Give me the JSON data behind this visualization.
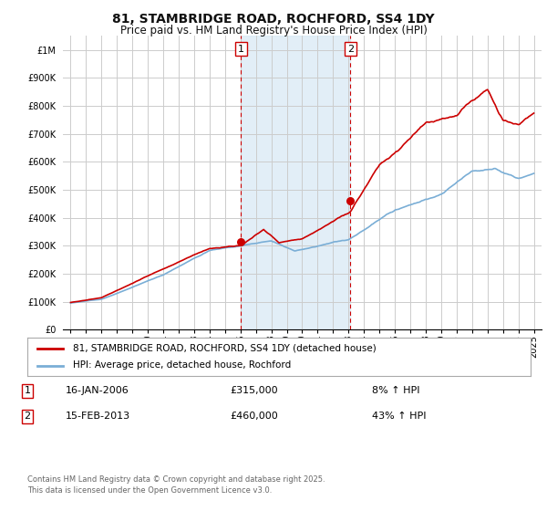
{
  "title": "81, STAMBRIDGE ROAD, ROCHFORD, SS4 1DY",
  "subtitle": "Price paid vs. HM Land Registry's House Price Index (HPI)",
  "red_label": "81, STAMBRIDGE ROAD, ROCHFORD, SS4 1DY (detached house)",
  "blue_label": "HPI: Average price, detached house, Rochford",
  "footnote": "Contains HM Land Registry data © Crown copyright and database right 2025.\nThis data is licensed under the Open Government Licence v3.0.",
  "event1_date": "16-JAN-2006",
  "event1_price": "£315,000",
  "event1_hpi": "8% ↑ HPI",
  "event1_year": 2006.04,
  "event1_value": 315000,
  "event2_date": "15-FEB-2013",
  "event2_price": "£460,000",
  "event2_hpi": "43% ↑ HPI",
  "event2_year": 2013.12,
  "event2_value": 460000,
  "ylim_max": 1050000,
  "xlim_min": 1994.5,
  "xlim_max": 2025.5,
  "yticks": [
    0,
    100000,
    200000,
    300000,
    400000,
    500000,
    600000,
    700000,
    800000,
    900000,
    1000000
  ],
  "ytick_labels": [
    "£0",
    "£100K",
    "£200K",
    "£300K",
    "£400K",
    "£500K",
    "£600K",
    "£700K",
    "£800K",
    "£900K",
    "£1M"
  ],
  "red_color": "#cc0000",
  "blue_color": "#7aaed6",
  "event_line_color": "#cc0000",
  "bg_shade_color": "#d6e8f5",
  "grid_color": "#cccccc",
  "background_color": "#ffffff",
  "title_fontsize": 10,
  "subtitle_fontsize": 8.5,
  "tick_fontsize": 7,
  "legend_fontsize": 7.5,
  "table_fontsize": 8,
  "footnote_fontsize": 6
}
